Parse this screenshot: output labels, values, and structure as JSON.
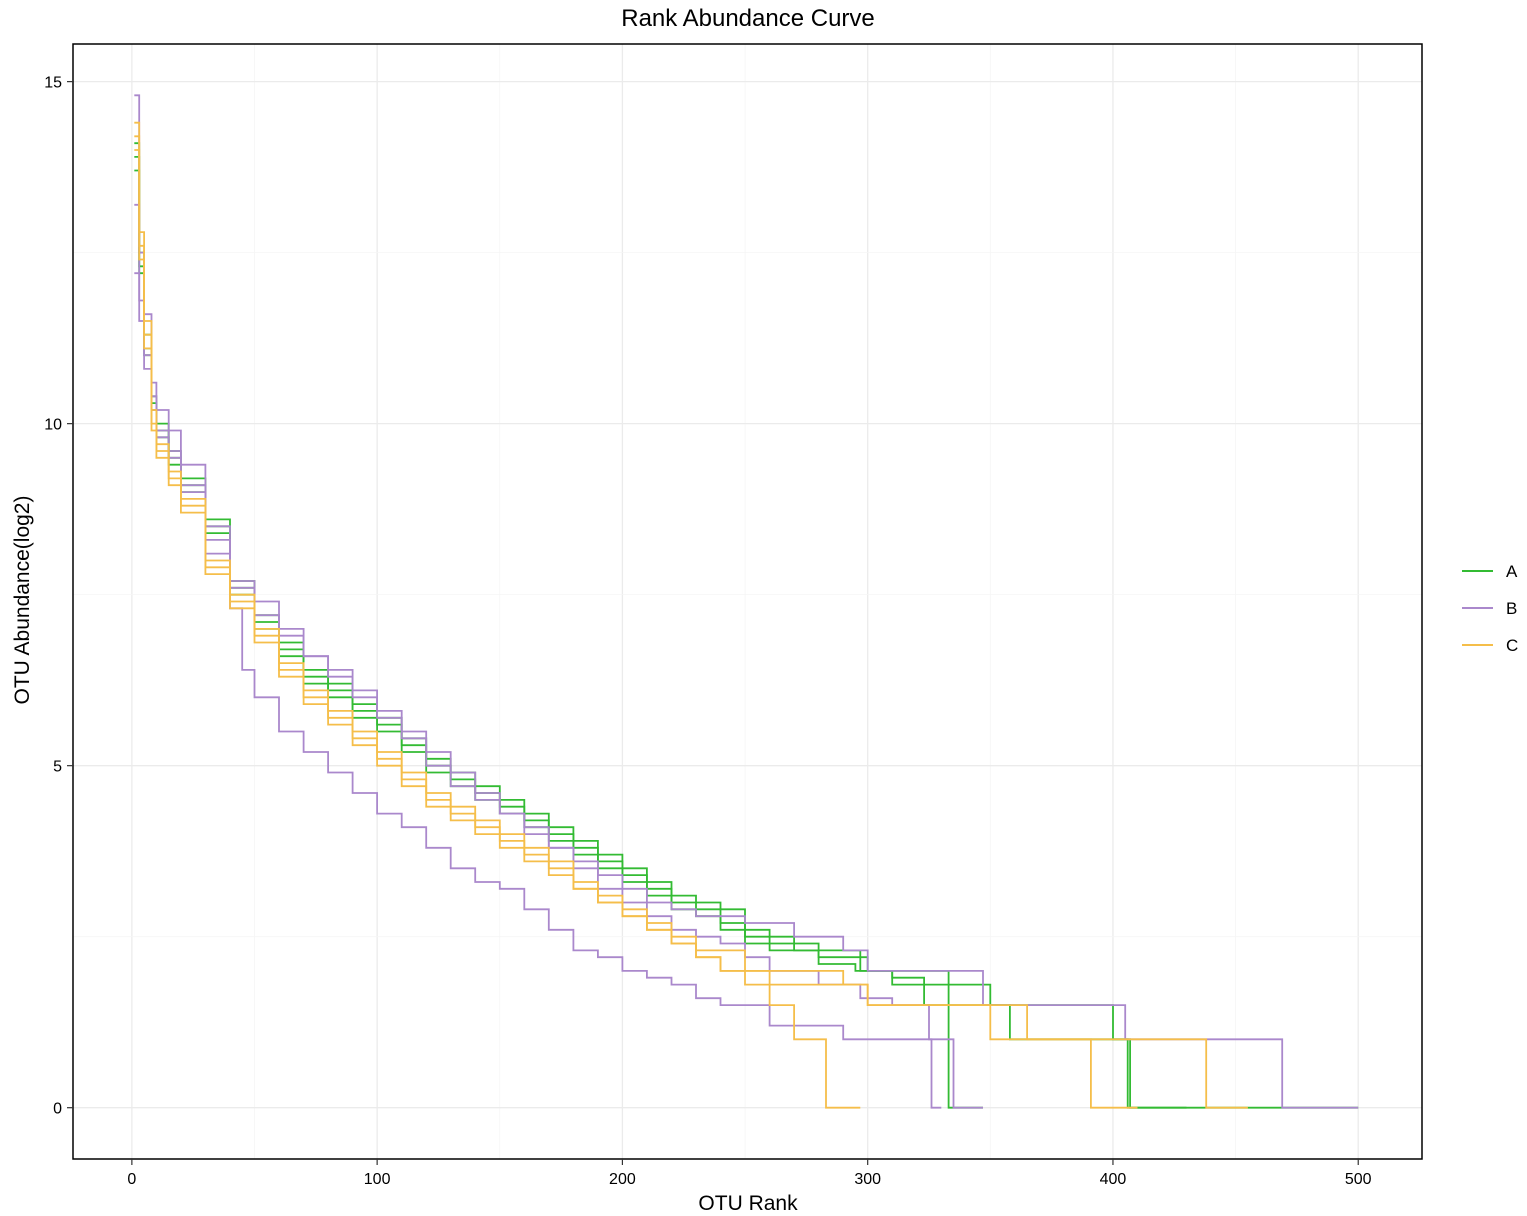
{
  "chart_data": {
    "type": "line",
    "title": "Rank Abundance Curve",
    "xlabel": "OTU Rank",
    "ylabel": "OTU Abundance(log2)",
    "xlim": [
      -24,
      526
    ],
    "ylim": [
      -0.75,
      15.55
    ],
    "xticks": [
      0,
      100,
      200,
      300,
      400,
      500
    ],
    "yticks": [
      0,
      5,
      10,
      15
    ],
    "grid": true,
    "legend_position": "right",
    "legend": [
      {
        "label": "A",
        "color": "#33BB33"
      },
      {
        "label": "B",
        "color": "#AA88CC"
      },
      {
        "label": "C",
        "color": "#F5BE4A"
      }
    ],
    "series": [
      {
        "group": "A",
        "color": "#33BB33",
        "x": [
          1,
          3,
          5,
          8,
          10,
          15,
          20,
          30,
          40,
          50,
          60,
          70,
          80,
          90,
          100,
          110,
          120,
          130,
          140,
          150,
          160,
          170,
          180,
          190,
          200,
          210,
          220,
          230,
          240,
          250,
          260,
          270,
          280,
          290,
          297,
          320,
          333,
          333,
          347
        ],
        "y": [
          14.1,
          12.5,
          11.3,
          10.4,
          10.0,
          9.6,
          9.2,
          8.6,
          7.7,
          7.2,
          6.8,
          6.4,
          6.2,
          5.9,
          5.7,
          5.4,
          5.1,
          4.9,
          4.7,
          4.5,
          4.3,
          4.1,
          3.9,
          3.7,
          3.5,
          3.3,
          3.1,
          3.0,
          2.9,
          2.6,
          2.5,
          2.3,
          2.3,
          2.3,
          2.0,
          2.0,
          1.5,
          0,
          0
        ]
      },
      {
        "group": "A",
        "color": "#33BB33",
        "x": [
          1,
          3,
          5,
          8,
          10,
          15,
          20,
          30,
          40,
          50,
          60,
          70,
          80,
          90,
          100,
          110,
          120,
          130,
          140,
          150,
          160,
          170,
          180,
          190,
          200,
          210,
          220,
          230,
          240,
          250,
          260,
          280,
          300,
          310,
          330,
          350,
          360,
          380,
          398,
          400,
          407,
          407,
          430
        ],
        "y": [
          13.7,
          12.2,
          11.0,
          10.2,
          9.9,
          9.5,
          9.1,
          8.5,
          7.6,
          7.1,
          6.7,
          6.3,
          6.1,
          5.8,
          5.6,
          5.3,
          5.0,
          4.8,
          4.6,
          4.4,
          4.2,
          4.0,
          3.8,
          3.6,
          3.4,
          3.2,
          3.0,
          2.9,
          2.7,
          2.5,
          2.4,
          2.2,
          2.0,
          1.8,
          1.8,
          1.5,
          1.5,
          1.5,
          1.5,
          1.0,
          1.0,
          0,
          0
        ]
      },
      {
        "group": "A",
        "color": "#33BB33",
        "x": [
          1,
          3,
          5,
          8,
          10,
          15,
          20,
          30,
          40,
          50,
          60,
          70,
          80,
          90,
          100,
          110,
          120,
          130,
          140,
          150,
          160,
          170,
          180,
          190,
          200,
          210,
          220,
          230,
          240,
          250,
          260,
          280,
          295,
          310,
          323,
          340,
          358,
          380,
          406,
          406,
          410,
          430,
          460,
          480,
          500
        ],
        "y": [
          13.9,
          12.3,
          11.1,
          10.3,
          9.8,
          9.4,
          9.0,
          8.4,
          7.5,
          7.0,
          6.6,
          6.2,
          6.0,
          5.7,
          5.5,
          5.2,
          4.9,
          4.7,
          4.5,
          4.3,
          4.1,
          3.9,
          3.7,
          3.5,
          3.3,
          3.1,
          2.9,
          2.8,
          2.6,
          2.4,
          2.3,
          2.1,
          2.0,
          1.9,
          1.5,
          1.5,
          1.0,
          1.0,
          1.0,
          0,
          0,
          0,
          0,
          0,
          0
        ]
      },
      {
        "group": "B",
        "color": "#AA88CC",
        "x": [
          1,
          3,
          5,
          8,
          10,
          15,
          20,
          30,
          40,
          50,
          60,
          70,
          80,
          90,
          100,
          110,
          120,
          130,
          140,
          150,
          160,
          170,
          180,
          190,
          200,
          210,
          220,
          230,
          240,
          250,
          260,
          280,
          297,
          310,
          325,
          335,
          335,
          347
        ],
        "y": [
          14.8,
          12.5,
          11.6,
          10.6,
          10.2,
          9.9,
          9.4,
          8.5,
          7.7,
          7.4,
          7.0,
          6.6,
          6.4,
          6.1,
          5.8,
          5.5,
          5.2,
          4.9,
          4.6,
          4.3,
          4.0,
          3.8,
          3.5,
          3.2,
          3.0,
          2.8,
          2.6,
          2.5,
          2.4,
          2.2,
          2.0,
          1.8,
          1.6,
          1.5,
          1.0,
          1.0,
          0,
          0
        ]
      },
      {
        "group": "B",
        "color": "#AA88CC",
        "x": [
          1,
          3,
          5,
          8,
          10,
          15,
          20,
          30,
          40,
          45,
          50,
          60,
          70,
          80,
          90,
          100,
          110,
          120,
          130,
          140,
          150,
          160,
          170,
          180,
          190,
          200,
          210,
          220,
          230,
          240,
          260,
          290,
          295,
          310,
          326,
          326,
          330
        ],
        "y": [
          13.2,
          11.8,
          11.0,
          10.4,
          9.9,
          9.6,
          9.0,
          8.1,
          7.3,
          6.4,
          6.0,
          5.5,
          5.2,
          4.9,
          4.6,
          4.3,
          4.1,
          3.8,
          3.5,
          3.3,
          3.2,
          2.9,
          2.6,
          2.3,
          2.2,
          2.0,
          1.9,
          1.8,
          1.6,
          1.5,
          1.2,
          1.0,
          1.0,
          1.0,
          1.0,
          0,
          0
        ]
      },
      {
        "group": "B",
        "color": "#AA88CC",
        "x": [
          1,
          3,
          5,
          8,
          10,
          15,
          20,
          30,
          40,
          50,
          60,
          70,
          80,
          90,
          100,
          110,
          120,
          130,
          140,
          150,
          160,
          170,
          180,
          190,
          200,
          210,
          220,
          230,
          250,
          270,
          290,
          300,
          320,
          347,
          360,
          380,
          405,
          410,
          440,
          469,
          469,
          480,
          500
        ],
        "y": [
          12.2,
          11.5,
          10.8,
          10.2,
          9.8,
          9.5,
          9.1,
          8.3,
          7.6,
          7.2,
          6.9,
          6.6,
          6.3,
          6.0,
          5.7,
          5.4,
          5.0,
          4.7,
          4.5,
          4.3,
          4.1,
          3.8,
          3.6,
          3.4,
          3.2,
          3.0,
          2.9,
          2.8,
          2.7,
          2.5,
          2.3,
          2.0,
          2.0,
          1.5,
          1.5,
          1.5,
          1.0,
          1.0,
          1.0,
          1.0,
          0,
          0,
          0
        ]
      },
      {
        "group": "C",
        "color": "#F5BE4A",
        "x": [
          1,
          3,
          5,
          8,
          10,
          15,
          20,
          30,
          40,
          50,
          60,
          70,
          80,
          90,
          100,
          110,
          120,
          130,
          140,
          150,
          160,
          170,
          180,
          190,
          200,
          210,
          220,
          230,
          240,
          250,
          260,
          270,
          283,
          283,
          297
        ],
        "y": [
          14.4,
          12.8,
          11.5,
          10.2,
          9.7,
          9.3,
          8.9,
          8.0,
          7.4,
          6.9,
          6.4,
          6.0,
          5.7,
          5.4,
          5.1,
          4.8,
          4.5,
          4.3,
          4.1,
          3.9,
          3.7,
          3.5,
          3.2,
          3.0,
          2.8,
          2.6,
          2.4,
          2.2,
          2.0,
          1.8,
          1.5,
          1.0,
          1.0,
          0,
          0
        ]
      },
      {
        "group": "C",
        "color": "#F5BE4A",
        "x": [
          1,
          3,
          5,
          8,
          10,
          15,
          20,
          30,
          40,
          50,
          60,
          70,
          80,
          90,
          100,
          110,
          120,
          130,
          140,
          150,
          160,
          170,
          180,
          190,
          200,
          210,
          220,
          230,
          250,
          270,
          290,
          300,
          330,
          365,
          380,
          391,
          391,
          410
        ],
        "y": [
          14.2,
          12.6,
          11.3,
          10.0,
          9.6,
          9.2,
          8.8,
          7.9,
          7.5,
          7.0,
          6.5,
          6.1,
          5.8,
          5.5,
          5.2,
          4.9,
          4.6,
          4.4,
          4.2,
          4.0,
          3.8,
          3.6,
          3.3,
          3.1,
          2.9,
          2.7,
          2.5,
          2.3,
          2.0,
          2.0,
          1.8,
          1.5,
          1.5,
          1.0,
          1.0,
          1.0,
          0,
          0
        ]
      },
      {
        "group": "C",
        "color": "#F5BE4A",
        "x": [
          1,
          3,
          5,
          8,
          10,
          15,
          20,
          30,
          40,
          50,
          60,
          70,
          80,
          90,
          100,
          110,
          120,
          130,
          140,
          150,
          160,
          170,
          180,
          190,
          200,
          210,
          220,
          230,
          240,
          260,
          300,
          320,
          350,
          380,
          410,
          438,
          438,
          455
        ],
        "y": [
          14.0,
          12.4,
          11.1,
          9.9,
          9.5,
          9.1,
          8.7,
          7.8,
          7.3,
          6.8,
          6.3,
          5.9,
          5.6,
          5.3,
          5.0,
          4.7,
          4.4,
          4.2,
          4.0,
          3.8,
          3.6,
          3.4,
          3.2,
          3.0,
          2.8,
          2.6,
          2.4,
          2.2,
          2.0,
          1.8,
          1.5,
          1.5,
          1.0,
          1.0,
          1.0,
          1.0,
          0,
          0
        ]
      }
    ]
  }
}
